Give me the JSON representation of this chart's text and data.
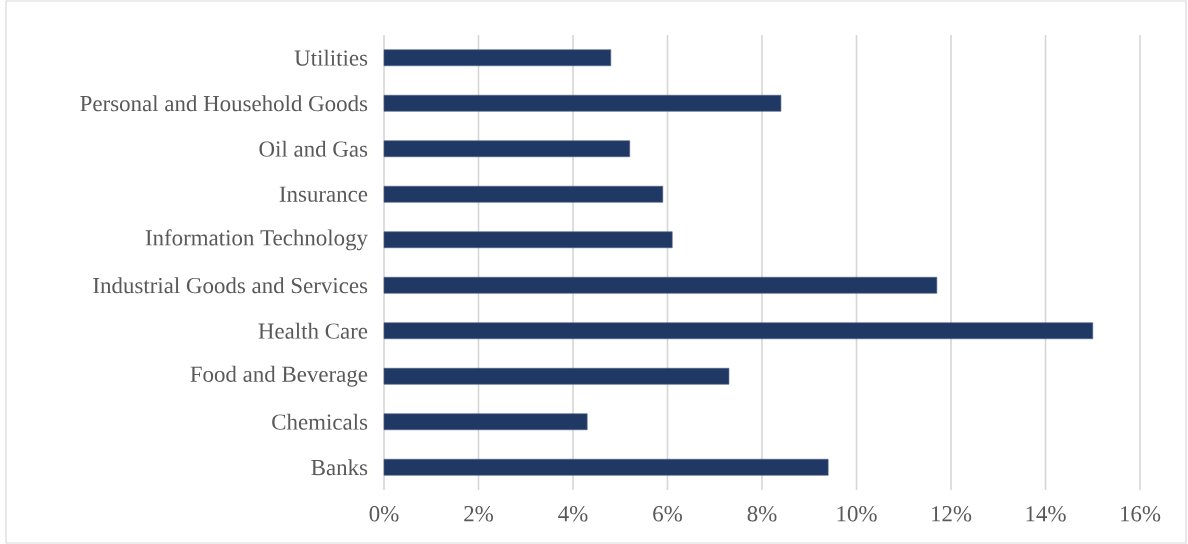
{
  "chart_data": {
    "type": "bar",
    "orientation": "horizontal",
    "categories": [
      "Utilities",
      "Personal and Household Goods",
      "Oil and Gas",
      "Insurance",
      "Information Technology",
      "Industrial Goods and Services",
      "Health Care",
      "Food and Beverage",
      "Chemicals",
      "Banks"
    ],
    "values": [
      4.8,
      8.4,
      5.2,
      5.9,
      6.1,
      11.7,
      15.0,
      7.3,
      4.3,
      9.4
    ],
    "color": "#203864",
    "xlim": [
      0,
      16
    ],
    "xticks": [
      {
        "value": 0,
        "label": "0%"
      },
      {
        "value": 2,
        "label": "2%"
      },
      {
        "value": 4,
        "label": "4%"
      },
      {
        "value": 6,
        "label": "6%"
      },
      {
        "value": 8,
        "label": "8%"
      },
      {
        "value": 10,
        "label": "10%"
      },
      {
        "value": 12,
        "label": "12%"
      },
      {
        "value": 14,
        "label": "14%"
      },
      {
        "value": 16,
        "label": "16%"
      }
    ],
    "grid": "x"
  }
}
